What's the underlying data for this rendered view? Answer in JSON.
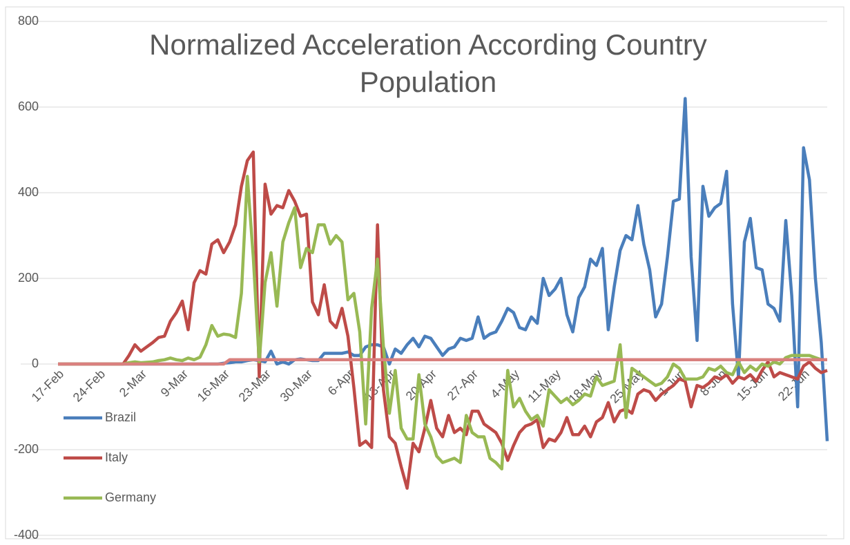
{
  "chart_data": {
    "type": "line",
    "title": "Normalized Acceleration According Country Population",
    "categories": [
      "17-Feb",
      null,
      null,
      null,
      null,
      null,
      null,
      "24-Feb",
      null,
      null,
      null,
      null,
      null,
      null,
      "2-Mar",
      null,
      null,
      null,
      null,
      null,
      null,
      "9-Mar",
      null,
      null,
      null,
      null,
      null,
      null,
      "16-Mar",
      null,
      null,
      null,
      null,
      null,
      null,
      "23-Mar",
      null,
      null,
      null,
      null,
      null,
      null,
      "30-Mar",
      null,
      null,
      null,
      null,
      null,
      null,
      "6-Apr",
      null,
      null,
      null,
      null,
      null,
      null,
      "13-Apr",
      null,
      null,
      null,
      null,
      null,
      null,
      "20-Apr",
      null,
      null,
      null,
      null,
      null,
      null,
      "27-Apr",
      null,
      null,
      null,
      null,
      null,
      null,
      "4-May",
      null,
      null,
      null,
      null,
      null,
      null,
      "11-May",
      null,
      null,
      null,
      null,
      null,
      null,
      "18-May",
      null,
      null,
      null,
      null,
      null,
      null,
      "25-May",
      null,
      null,
      null,
      null,
      null,
      null,
      "1-Jun",
      null,
      null,
      null,
      null,
      null,
      null,
      "8-Jun",
      null,
      null,
      null,
      null,
      null,
      null,
      "15-Jun",
      null,
      null,
      null,
      null,
      null,
      null,
      "22-Jun",
      null,
      null,
      null,
      null
    ],
    "series": [
      {
        "name": "Brazil",
        "color": "#4a7ebb",
        "values": [
          0,
          0,
          0,
          0,
          0,
          0,
          0,
          0,
          0,
          0,
          0,
          0,
          0,
          0,
          0,
          0,
          0,
          0,
          0,
          0,
          0,
          0,
          0,
          0,
          0,
          0,
          0,
          0,
          2,
          3,
          5,
          5,
          8,
          10,
          8,
          5,
          30,
          0,
          5,
          0,
          10,
          12,
          10,
          8,
          8,
          25,
          25,
          25,
          25,
          28,
          20,
          20,
          40,
          45,
          45,
          40,
          0,
          35,
          25,
          45,
          60,
          40,
          65,
          60,
          40,
          20,
          35,
          40,
          60,
          55,
          60,
          110,
          60,
          70,
          75,
          100,
          130,
          120,
          85,
          80,
          110,
          95,
          200,
          160,
          175,
          200,
          115,
          75,
          155,
          180,
          245,
          230,
          270,
          80,
          180,
          265,
          300,
          290,
          370,
          280,
          220,
          110,
          140,
          250,
          380,
          385,
          620,
          250,
          55,
          415,
          345,
          365,
          375,
          450,
          140,
          -30,
          285,
          340,
          225,
          220,
          140,
          130,
          100,
          335,
          160,
          -100,
          505,
          430,
          200,
          50,
          -180
        ]
      },
      {
        "name": "Italy",
        "color": "#be4b48",
        "values": [
          0,
          0,
          0,
          0,
          0,
          0,
          0,
          0,
          0,
          0,
          0,
          0,
          20,
          45,
          30,
          40,
          50,
          62,
          65,
          100,
          120,
          147,
          80,
          190,
          218,
          210,
          280,
          290,
          260,
          285,
          325,
          415,
          475,
          495,
          -30,
          420,
          350,
          370,
          365,
          405,
          380,
          345,
          350,
          145,
          115,
          185,
          100,
          85,
          130,
          65,
          -55,
          -190,
          -180,
          -195,
          325,
          -60,
          -170,
          -185,
          -240,
          -290,
          -185,
          -205,
          -150,
          -85,
          -150,
          -170,
          -120,
          -160,
          -150,
          -165,
          -110,
          -110,
          -140,
          -150,
          -160,
          -185,
          -225,
          -190,
          -160,
          -145,
          -140,
          -130,
          -195,
          -175,
          -180,
          -160,
          -125,
          -165,
          -165,
          -145,
          -170,
          -135,
          -125,
          -90,
          -135,
          -110,
          -105,
          -115,
          -70,
          -60,
          -65,
          -85,
          -70,
          -60,
          -50,
          -35,
          -40,
          -100,
          -50,
          -55,
          -45,
          -30,
          -35,
          -25,
          -45,
          -30,
          -35,
          -25,
          -40,
          -15,
          5,
          -30,
          -20,
          -25,
          -30,
          -35,
          -5,
          5,
          -10,
          -20,
          -15
        ]
      },
      {
        "name": "Germany",
        "color": "#98b954",
        "values": [
          0,
          0,
          0,
          0,
          0,
          0,
          0,
          0,
          0,
          0,
          0,
          0,
          3,
          5,
          3,
          4,
          5,
          8,
          10,
          14,
          10,
          8,
          14,
          10,
          16,
          45,
          90,
          65,
          70,
          68,
          62,
          165,
          438,
          250,
          5,
          190,
          260,
          135,
          285,
          330,
          365,
          225,
          270,
          260,
          325,
          325,
          280,
          300,
          285,
          150,
          165,
          75,
          -140,
          130,
          245,
          40,
          -115,
          -15,
          -150,
          -175,
          -175,
          -25,
          -140,
          -170,
          -215,
          -230,
          -225,
          -220,
          -230,
          -120,
          -160,
          -170,
          -170,
          -220,
          -230,
          -245,
          -15,
          -100,
          -80,
          -110,
          -130,
          -120,
          -145,
          -60,
          -75,
          -90,
          -80,
          -95,
          -85,
          -70,
          -75,
          -30,
          -50,
          -45,
          -40,
          45,
          -125,
          -10,
          -20,
          -30,
          -40,
          -50,
          -45,
          -30,
          0,
          -10,
          -35,
          -35,
          -35,
          -30,
          -10,
          -15,
          -5,
          -20,
          -25,
          5,
          -20,
          -5,
          -15,
          0,
          -5,
          5,
          0,
          15,
          20,
          20,
          20,
          20,
          15,
          10,
          null
        ]
      },
      {
        "color": "#d9807e",
        "values": [
          0,
          0,
          0,
          0,
          0,
          0,
          0,
          0,
          0,
          0,
          0,
          0,
          0,
          0,
          0,
          0,
          0,
          0,
          0,
          0,
          0,
          0,
          0,
          0,
          0,
          0,
          0,
          0,
          0,
          10,
          10,
          10,
          10,
          10,
          10,
          10,
          10,
          10,
          10,
          10,
          10,
          10,
          10,
          10,
          10,
          10,
          10,
          10,
          10,
          10,
          10,
          10,
          10,
          10,
          10,
          10,
          10,
          10,
          10,
          10,
          10,
          10,
          10,
          10,
          10,
          10,
          10,
          10,
          10,
          10,
          10,
          10,
          10,
          10,
          10,
          10,
          10,
          10,
          10,
          10,
          10,
          10,
          10,
          10,
          10,
          10,
          10,
          10,
          10,
          10,
          10,
          10,
          10,
          10,
          10,
          10,
          10,
          10,
          10,
          10,
          10,
          10,
          10,
          10,
          10,
          10,
          10,
          10,
          10,
          10,
          10,
          10,
          10,
          10,
          10,
          10,
          10,
          10,
          10,
          10,
          10,
          10,
          10,
          10,
          10,
          10,
          10,
          10,
          10,
          10,
          10
        ]
      }
    ],
    "ylim": [
      -400,
      800
    ],
    "yticks": [
      -400,
      -200,
      0,
      200,
      400,
      600,
      800
    ],
    "grid": true,
    "legend": "left"
  }
}
